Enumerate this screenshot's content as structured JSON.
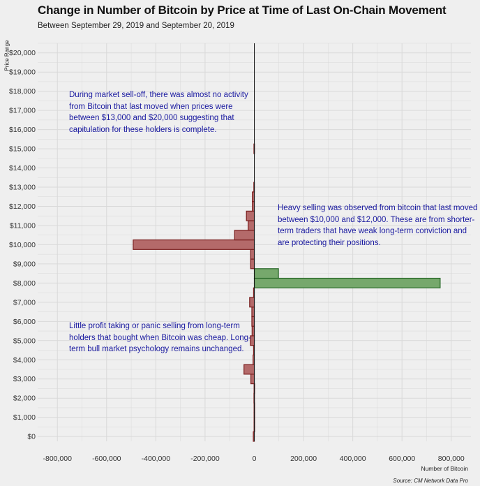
{
  "chart_data": {
    "type": "bar",
    "orientation": "horizontal",
    "title": "Change in Number of Bitcoin by Price at Time of Last On-Chain Movement",
    "subtitle": "Between September 29, 2019 and September 20, 2019",
    "ylabel": "Price Range",
    "xlabel": "Number of Bitcoin",
    "source": "Source: CM Network Data Pro",
    "x_ticks": [
      "-800,000",
      "-600,000",
      "-400,000",
      "-200,000",
      "0",
      "200,000",
      "400,000",
      "600,000",
      "800,000"
    ],
    "x_tick_values": [
      -800000,
      -600000,
      -400000,
      -200000,
      0,
      200000,
      400000,
      600000,
      800000
    ],
    "y_ticks": [
      "$0",
      "$1,000",
      "$2,000",
      "$3,000",
      "$4,000",
      "$5,000",
      "$6,000",
      "$7,000",
      "$8,000",
      "$9,000",
      "$10,000",
      "$11,000",
      "$12,000",
      "$13,000",
      "$14,000",
      "$15,000",
      "$16,000",
      "$17,000",
      "$18,000",
      "$19,000",
      "$20,000"
    ],
    "y_tick_values": [
      0,
      1000,
      2000,
      3000,
      4000,
      5000,
      6000,
      7000,
      8000,
      9000,
      10000,
      11000,
      12000,
      13000,
      14000,
      15000,
      16000,
      17000,
      18000,
      19000,
      20000
    ],
    "xlim": [
      -880000,
      880000
    ],
    "ylim": [
      -250,
      20500
    ],
    "bin_size": 500,
    "bins": [
      {
        "price": 0,
        "value": -4000
      },
      {
        "price": 500,
        "value": -1000
      },
      {
        "price": 1000,
        "value": -1000
      },
      {
        "price": 1500,
        "value": -1000
      },
      {
        "price": 2000,
        "value": -1500
      },
      {
        "price": 2500,
        "value": -1000
      },
      {
        "price": 3000,
        "value": -14000
      },
      {
        "price": 3500,
        "value": -42000
      },
      {
        "price": 4000,
        "value": -5000
      },
      {
        "price": 4500,
        "value": -3000
      },
      {
        "price": 5000,
        "value": -16000
      },
      {
        "price": 5500,
        "value": -9000
      },
      {
        "price": 6000,
        "value": -10000
      },
      {
        "price": 6500,
        "value": -10000
      },
      {
        "price": 7000,
        "value": -19000
      },
      {
        "price": 7500,
        "value": -3000
      },
      {
        "price": 8000,
        "value": 755000
      },
      {
        "price": 8500,
        "value": 98000
      },
      {
        "price": 9000,
        "value": -15000
      },
      {
        "price": 9500,
        "value": -15000
      },
      {
        "price": 10000,
        "value": -492000
      },
      {
        "price": 10500,
        "value": -80000
      },
      {
        "price": 11000,
        "value": -25000
      },
      {
        "price": 11500,
        "value": -32000
      },
      {
        "price": 12000,
        "value": -8000
      },
      {
        "price": 12500,
        "value": -8000
      },
      {
        "price": 13000,
        "value": -2000
      },
      {
        "price": 15000,
        "value": -1500
      }
    ],
    "colors": {
      "negative_fill": "#b46a6a",
      "negative_stroke": "#7a1f1f",
      "positive_fill": "#76a86c",
      "positive_stroke": "#2a6a2a",
      "annotation": "#1a1aa0",
      "grid": "#d9d9d9",
      "background": "#efefef"
    },
    "annotations": [
      {
        "id": "selloff",
        "text": "During market sell-off, there was almost no activity from Bitcoin that last moved when prices were between $13,000 and $20,000 suggesting that capitulation for these holders is complete."
      },
      {
        "id": "heavy",
        "text": "Heavy selling was observed from bitcoin that last moved between $10,000 and $12,000. These are from shorter-term traders that have weak long-term conviction and are protecting their positions."
      },
      {
        "id": "little",
        "text": "Little profit taking or panic selling from long-term holders that bought when Bitcoin was cheap. Long-term bull market psychology remains unchanged."
      }
    ],
    "grid": true,
    "legend": "none"
  }
}
